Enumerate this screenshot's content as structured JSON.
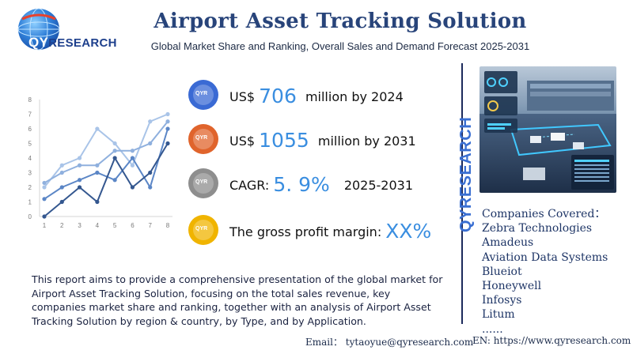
{
  "logo": {
    "brand_prefix": "QY",
    "brand_rest": "RESEARCH"
  },
  "header": {
    "title": "Airport Asset Tracking Solution",
    "subtitle": "Global Market Share and Ranking, Overall Sales and Demand Forecast 2025-2031"
  },
  "stats": [
    {
      "prefix": "US$ ",
      "value": "706",
      "suffix": " million by 2024",
      "icon_color": "#3a6ad4"
    },
    {
      "prefix": "US$ ",
      "value": "1055",
      "suffix": " million by 2031",
      "icon_color": "#e0642c"
    },
    {
      "prefix": "CAGR: ",
      "value": "5. 9%",
      "suffix": "2025-2031",
      "icon_color": "#8e8e8e"
    },
    {
      "prefix": "The gross profit margin: ",
      "value": "XX%",
      "suffix": "",
      "icon_color": "#f0b400"
    }
  ],
  "stat_icon_text": "QYR",
  "description": "This report aims to provide a comprehensive presentation of the global market for Airport Asset Tracking Solution, focusing on the total sales revenue, key companies market share and ranking, together with an analysis of Airport Asset Tracking Solution by region & country, by Type, and by Application.",
  "footer": {
    "email": "Email： tytaoyue@qyresearch.com",
    "web": "EN: https://www.qyresearch.com"
  },
  "vertical_brand": "QYRESEARCH",
  "companies": {
    "heading": "Companies Covered：",
    "list": [
      "Zebra Technologies",
      "Amadeus",
      "Aviation Data Systems",
      "Blueiot",
      "Honeywell",
      "Infosys",
      "Litum"
    ],
    "more": "......"
  },
  "colors": {
    "title": "#28447a",
    "accent": "#3a8ee0",
    "brand_blue": "#3a6fd2"
  },
  "chart_data": {
    "type": "line",
    "x": [
      1,
      2,
      3,
      4,
      5,
      6,
      7,
      8
    ],
    "x_tick_labels": [
      "1",
      "2",
      "3",
      "4",
      "5",
      "6",
      "7",
      "8"
    ],
    "y_tick_labels": [
      "0",
      "1",
      "2",
      "3",
      "4",
      "5",
      "6",
      "7",
      "8"
    ],
    "ylim": [
      0,
      8
    ],
    "grid": false,
    "series": [
      {
        "values": [
          2.0,
          3.5,
          4.0,
          6.0,
          5.0,
          3.5,
          6.5,
          7.0
        ],
        "color": "#a9c4e8"
      },
      {
        "values": [
          2.3,
          3.0,
          3.5,
          3.5,
          4.5,
          4.5,
          5.0,
          6.5
        ],
        "color": "#8fb0de"
      },
      {
        "values": [
          1.2,
          2.0,
          2.5,
          3.0,
          2.5,
          4.0,
          2.0,
          6.0
        ],
        "color": "#5b86c6"
      },
      {
        "values": [
          0.0,
          1.0,
          2.0,
          1.0,
          4.0,
          2.0,
          3.0,
          5.0
        ],
        "color": "#34578f"
      }
    ]
  }
}
